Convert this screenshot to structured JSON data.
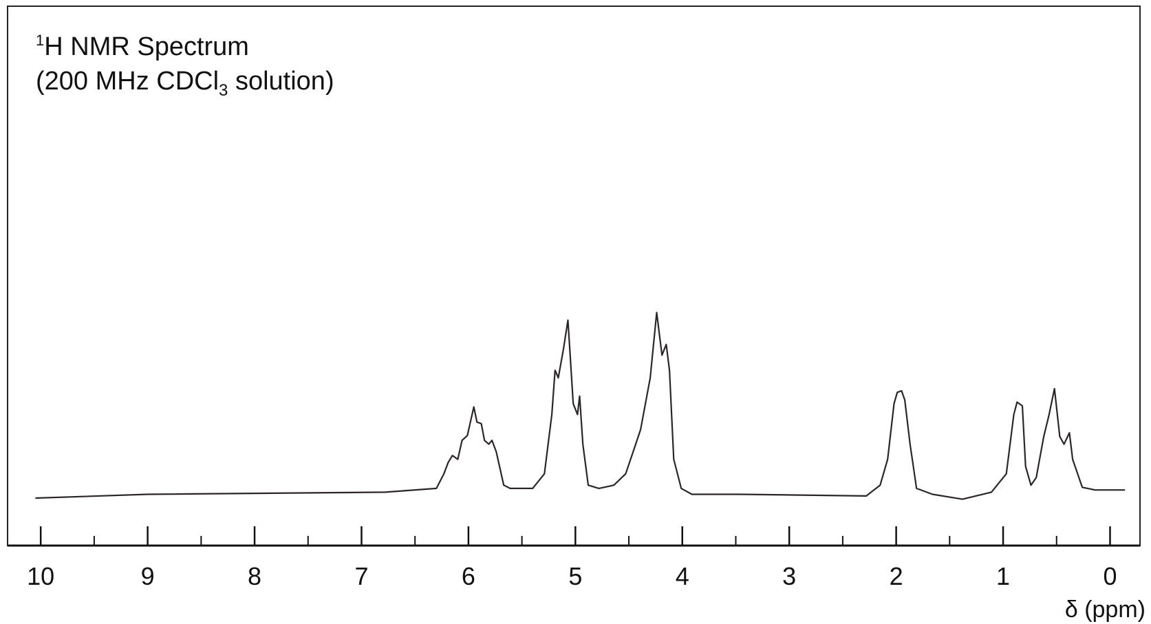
{
  "chart_data": {
    "type": "line",
    "title": {
      "superscript": "1",
      "text": "H NMR Spectrum"
    },
    "subtitle": {
      "before": "(200 MHz CDCl",
      "subscript": "3",
      "after": " solution)"
    },
    "x_label": "δ (ppm)",
    "color": "#2b2528",
    "xlim": [
      10.31,
      -0.28
    ],
    "ylim": [
      0,
      100
    ],
    "xticks": [
      10,
      9,
      8,
      7,
      6,
      5,
      4,
      3,
      2,
      1,
      0
    ],
    "xminorticks": [
      9.5,
      8.5,
      7.5,
      6.5,
      5.5,
      4.5,
      3.5,
      2.5,
      1.5,
      0.5
    ],
    "x": [
      10.05,
      9.0,
      6.78,
      6.3,
      6.23,
      6.19,
      6.15,
      6.1,
      6.06,
      6.01,
      5.95,
      5.92,
      5.88,
      5.85,
      5.81,
      5.78,
      5.74,
      5.67,
      5.61,
      5.4,
      5.29,
      5.22,
      5.19,
      5.16,
      5.11,
      5.07,
      5.02,
      4.98,
      4.96,
      4.93,
      4.88,
      4.78,
      4.64,
      4.53,
      4.46,
      4.39,
      4.3,
      4.24,
      4.19,
      4.15,
      4.12,
      4.08,
      4.01,
      3.91,
      3.46,
      2.28,
      2.15,
      2.08,
      2.02,
      1.99,
      1.95,
      1.92,
      1.87,
      1.81,
      1.66,
      1.38,
      1.11,
      0.97,
      0.9,
      0.87,
      0.82,
      0.79,
      0.74,
      0.69,
      0.62,
      0.57,
      0.52,
      0.47,
      0.43,
      0.38,
      0.35,
      0.26,
      0.14,
      -0.14
    ],
    "values": [
      8.8,
      9.5,
      9.9,
      10.6,
      13.3,
      15.4,
      16.7,
      16.0,
      19.5,
      20.4,
      25.7,
      22.9,
      22.6,
      19.5,
      18.8,
      19.5,
      17.4,
      11.2,
      10.6,
      10.6,
      13.3,
      24.3,
      32.5,
      31.1,
      36.6,
      41.8,
      26.3,
      24.3,
      27.7,
      18.8,
      11.2,
      10.6,
      11.2,
      13.3,
      17.4,
      21.5,
      31.1,
      43.2,
      35.3,
      37.3,
      32.5,
      16.0,
      10.6,
      9.5,
      9.5,
      9.2,
      11.2,
      16.0,
      26.3,
      28.4,
      28.7,
      27.0,
      18.8,
      10.6,
      9.5,
      8.6,
      9.9,
      13.3,
      24.3,
      26.6,
      25.9,
      14.7,
      11.2,
      12.6,
      20.2,
      24.3,
      29.1,
      20.2,
      18.8,
      20.9,
      16.0,
      10.8,
      10.3,
      10.3
    ]
  }
}
